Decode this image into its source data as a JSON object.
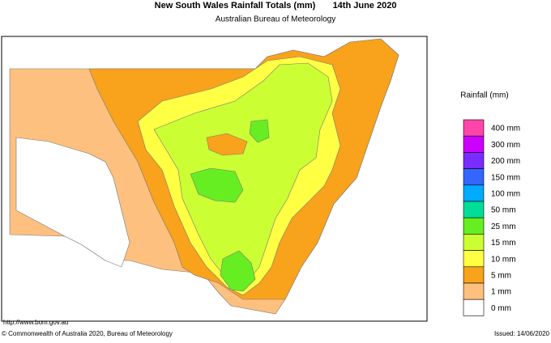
{
  "header": {
    "title": "New South Wales Rainfall Totals (mm)",
    "date": "14th June 2020",
    "subtitle": "Australian Bureau of Meteorology"
  },
  "legend": {
    "title": "Rainfall (mm)",
    "items": [
      {
        "label": "400 mm",
        "color": "#ff44aa"
      },
      {
        "label": "300 mm",
        "color": "#cc00ff"
      },
      {
        "label": "200 mm",
        "color": "#7a2cff"
      },
      {
        "label": "150 mm",
        "color": "#3366ff"
      },
      {
        "label": "100 mm",
        "color": "#00aaff"
      },
      {
        "label": "50 mm",
        "color": "#00dd99"
      },
      {
        "label": "25 mm",
        "color": "#66ee22"
      },
      {
        "label": "15 mm",
        "color": "#ccff33"
      },
      {
        "label": "10 mm",
        "color": "#ffff44"
      },
      {
        "label": "5 mm",
        "color": "#f9a21b"
      },
      {
        "label": "1 mm",
        "color": "#fdc07e"
      },
      {
        "label": "0 mm",
        "color": "#ffffff"
      }
    ]
  },
  "footer": {
    "url": "http://www.bom.gov.au",
    "copyright": "© Commonwealth of Australia 2020, Bureau of Meteorology",
    "issued": "Issued: 14/06/2020"
  }
}
